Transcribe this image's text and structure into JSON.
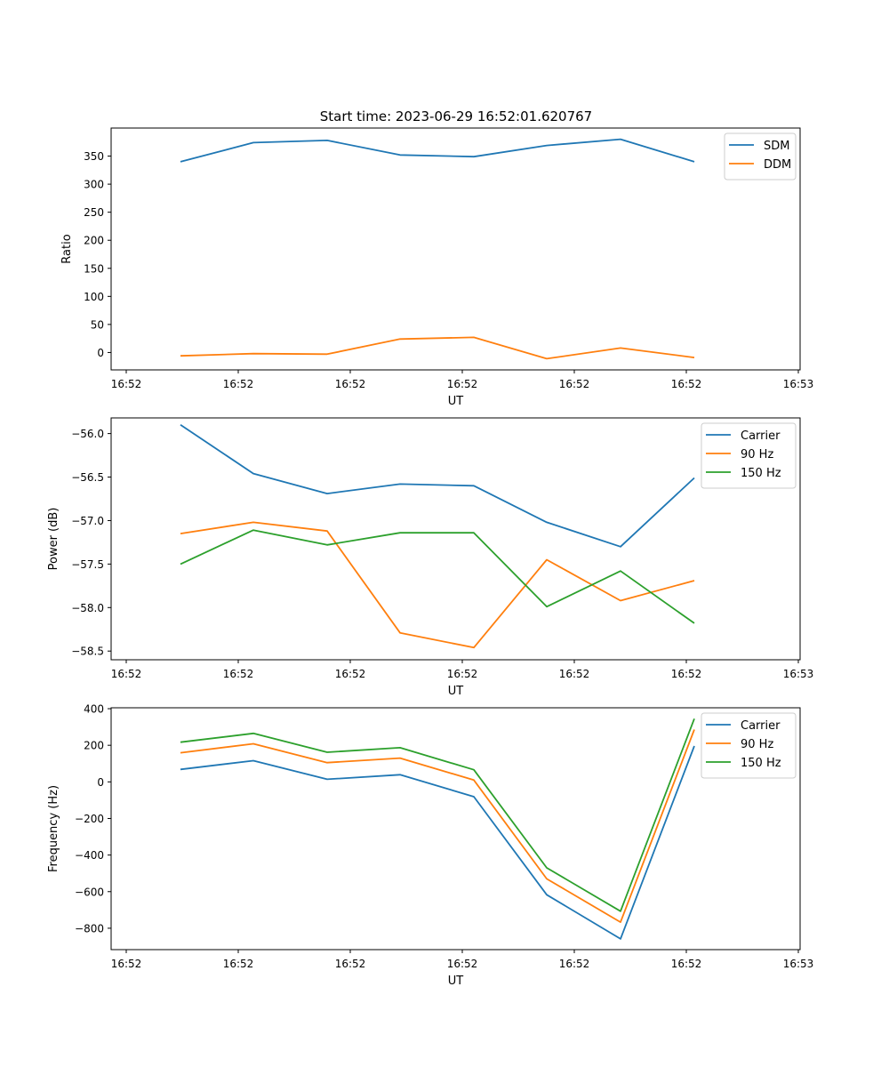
{
  "figure": {
    "title": "Start time: 2023-06-29 16:52:01.620767"
  },
  "chart_data": [
    {
      "type": "line",
      "title": "Start time: 2023-06-29 16:52:01.620767",
      "xlabel": "UT",
      "ylabel": "Ratio",
      "x_tick_labels": [
        "16:52",
        "16:52",
        "16:52",
        "16:52",
        "16:52",
        "16:52",
        "16:53"
      ],
      "y_ticks": [
        0,
        50,
        100,
        150,
        200,
        250,
        300,
        350
      ],
      "ylim": [
        -31,
        400
      ],
      "legend_position": "top-right",
      "grid": false,
      "series": [
        {
          "name": "SDM",
          "color": "#1f77b4",
          "values": [
            340,
            374,
            378,
            352,
            349,
            369,
            380,
            340
          ]
        },
        {
          "name": "DDM",
          "color": "#ff7f0e",
          "values": [
            -6,
            -2,
            -3,
            24,
            27,
            -11,
            8,
            -9
          ]
        }
      ]
    },
    {
      "type": "line",
      "xlabel": "UT",
      "ylabel": "Power (dB)",
      "x_tick_labels": [
        "16:52",
        "16:52",
        "16:52",
        "16:52",
        "16:52",
        "16:52",
        "16:53"
      ],
      "y_ticks": [
        -58.5,
        -58.0,
        -57.5,
        -57.0,
        -56.5,
        -56.0
      ],
      "y_tick_labels": [
        "−58.5",
        "−58.0",
        "−57.5",
        "−57.0",
        "−56.5",
        "−56.0"
      ],
      "ylim": [
        -58.6,
        -55.82
      ],
      "legend_position": "top-right",
      "grid": false,
      "series": [
        {
          "name": "Carrier",
          "color": "#1f77b4",
          "values": [
            -55.9,
            -56.46,
            -56.69,
            -56.58,
            -56.6,
            -57.02,
            -57.3,
            -56.51
          ]
        },
        {
          "name": "90 Hz",
          "color": "#ff7f0e",
          "values": [
            -57.15,
            -57.02,
            -57.12,
            -58.29,
            -58.46,
            -57.45,
            -57.92,
            -57.69
          ]
        },
        {
          "name": "150 Hz",
          "color": "#2ca02c",
          "values": [
            -57.5,
            -57.11,
            -57.28,
            -57.14,
            -57.14,
            -57.99,
            -57.58,
            -58.18
          ]
        }
      ]
    },
    {
      "type": "line",
      "xlabel": "UT",
      "ylabel": "Frequency (Hz)",
      "x_tick_labels": [
        "16:52",
        "16:52",
        "16:52",
        "16:52",
        "16:52",
        "16:52",
        "16:53"
      ],
      "y_ticks": [
        -800,
        -600,
        -400,
        -200,
        0,
        200,
        400
      ],
      "y_tick_labels": [
        "−800",
        "−600",
        "−400",
        "−200",
        "0",
        "200",
        "400"
      ],
      "ylim": [
        -917,
        405
      ],
      "legend_position": "top-right",
      "grid": false,
      "series": [
        {
          "name": "Carrier",
          "color": "#1f77b4",
          "values": [
            68,
            116,
            14,
            39,
            -81,
            -617,
            -858,
            196
          ]
        },
        {
          "name": "90 Hz",
          "color": "#ff7f0e",
          "values": [
            159,
            208,
            105,
            130,
            10,
            -530,
            -767,
            286
          ]
        },
        {
          "name": "150 Hz",
          "color": "#2ca02c",
          "values": [
            217,
            265,
            162,
            187,
            66,
            -470,
            -707,
            345
          ]
        }
      ]
    }
  ]
}
